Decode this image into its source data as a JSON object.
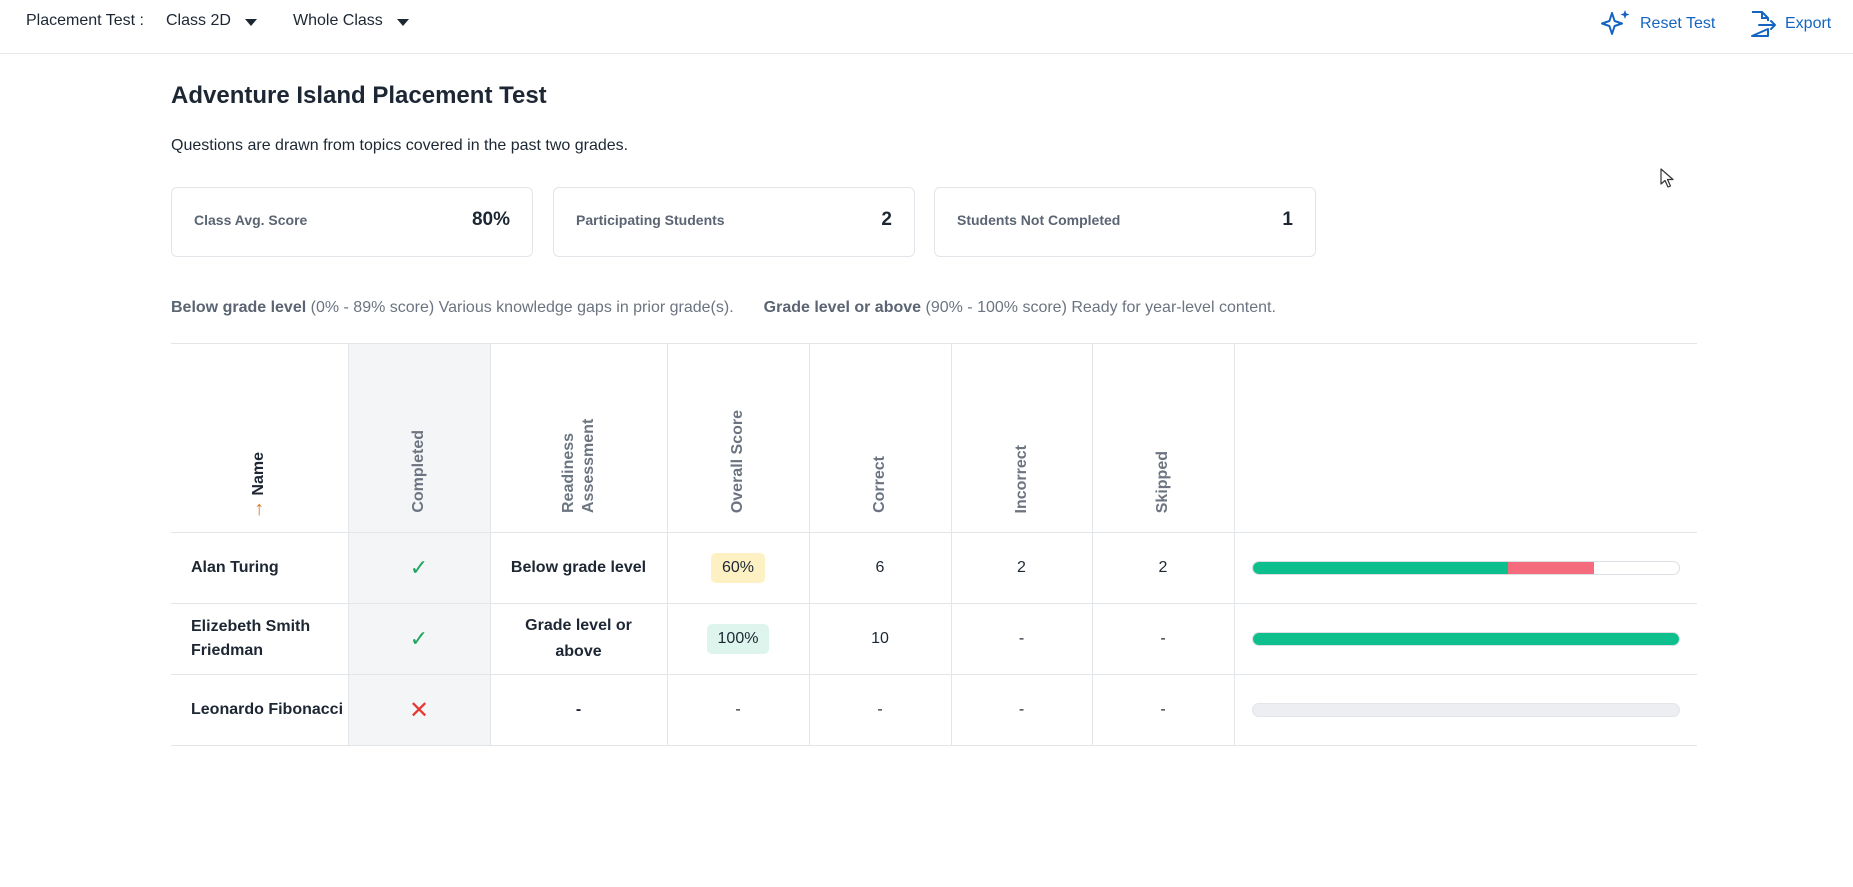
{
  "header": {
    "label": "Placement Test :",
    "class_select": "Class 2D",
    "group_select": "Whole Class",
    "reset_label": "Reset Test",
    "export_label": "Export"
  },
  "main": {
    "title": "Adventure Island Placement Test",
    "subtitle": "Questions are drawn from topics covered in the past two grades."
  },
  "stats": [
    {
      "label": "Class Avg. Score",
      "value": "80%"
    },
    {
      "label": "Participating Students",
      "value": "2"
    },
    {
      "label": "Students Not Completed",
      "value": "1"
    }
  ],
  "legend": {
    "below_label": "Below grade level",
    "below_desc": "(0% - 89% score) Various knowledge gaps in prior grade(s).",
    "above_label": "Grade level or above",
    "above_desc": "(90% - 100% score) Ready for year-level content."
  },
  "table": {
    "headers": {
      "name": "Name",
      "completed": "Completed",
      "readiness": "Readiness Assessment",
      "overall": "Overall Score",
      "correct": "Correct",
      "incorrect": "Incorrect",
      "skipped": "Skipped"
    },
    "rows": [
      {
        "name": "Alan Turing",
        "completed": true,
        "readiness": "Below grade level",
        "overall": "60%",
        "correct": "6",
        "incorrect": "2",
        "skipped": "2",
        "progress": {
          "correct_fraction": 0.6,
          "incorrect_fraction": 0.2
        }
      },
      {
        "name": "Elizebeth Smith Friedman",
        "completed": true,
        "readiness": "Grade level or above",
        "overall": "100%",
        "correct": "10",
        "incorrect": "-",
        "skipped": "-",
        "progress": {
          "correct_fraction": 1.0,
          "incorrect_fraction": 0.0
        }
      },
      {
        "name": "Leonardo Fibonacci",
        "completed": false,
        "readiness": "-",
        "overall": "-",
        "correct": "-",
        "incorrect": "-",
        "skipped": "-",
        "progress": {
          "correct_fraction": 0.0,
          "incorrect_fraction": 0.0
        }
      }
    ]
  },
  "colors": {
    "link": "#1565c0",
    "correct": "#0dbf8c",
    "incorrect": "#f46b7d",
    "badge_below": "#fdf1c4",
    "badge_above": "#ddf5ec",
    "sort_arrow": "#e8761e"
  }
}
